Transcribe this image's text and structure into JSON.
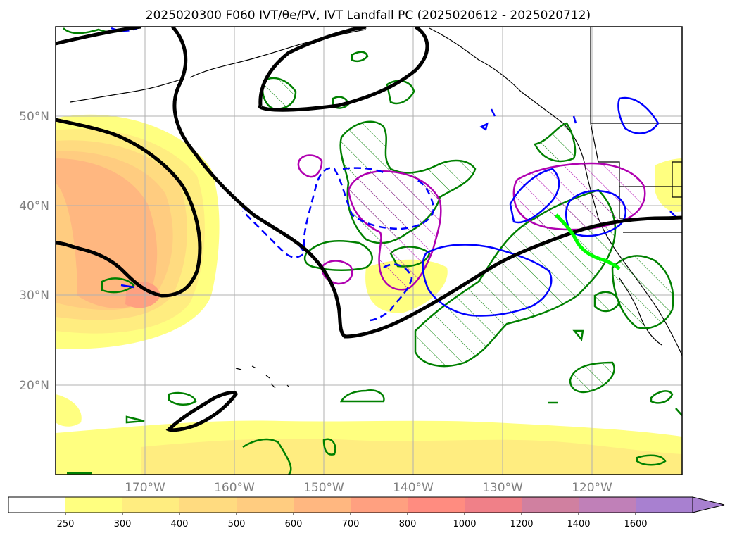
{
  "title": "2025020300 F060 IVT/θe/PV, IVT Landfall PC (2025020612 - 2025020712)",
  "map": {
    "projection": "plate-carree",
    "lon_range": [
      -180,
      -110
    ],
    "lat_range": [
      10,
      60
    ],
    "lat_labels": [
      {
        "value": 20,
        "label": "20°N"
      },
      {
        "value": 30,
        "label": "30°N"
      },
      {
        "value": 40,
        "label": "40°N"
      },
      {
        "value": 50,
        "label": "50°N"
      }
    ],
    "lon_labels": [
      {
        "value": -170,
        "label": "170°W"
      },
      {
        "value": -160,
        "label": "160°W"
      },
      {
        "value": -150,
        "label": "150°W"
      },
      {
        "value": -140,
        "label": "140°W"
      },
      {
        "value": -130,
        "label": "130°W"
      },
      {
        "value": -120,
        "label": "120°W"
      }
    ],
    "grid": true,
    "colors": {
      "theta_e_contour": "#000000",
      "pv_positive": "#0000ff",
      "landfall_pc_region": "#008000",
      "ivt_anomaly_region": "#b000b0",
      "landfall_track": "#00ff00",
      "coastline": "#000000"
    }
  },
  "colorbar": {
    "units_label": "",
    "extend": "max",
    "bins": [
      {
        "lower": 0,
        "upper": 250,
        "color": "#ffffff"
      },
      {
        "lower": 250,
        "upper": 300,
        "color": "#ffff80"
      },
      {
        "lower": 300,
        "upper": 400,
        "color": "#ffed80"
      },
      {
        "lower": 400,
        "upper": 500,
        "color": "#ffdb80"
      },
      {
        "lower": 500,
        "upper": 600,
        "color": "#ffcc80"
      },
      {
        "lower": 600,
        "upper": 700,
        "color": "#ffb780"
      },
      {
        "lower": 700,
        "upper": 800,
        "color": "#ffa080"
      },
      {
        "lower": 800,
        "upper": 1000,
        "color": "#ff8c80"
      },
      {
        "lower": 1000,
        "upper": 1200,
        "color": "#f08088"
      },
      {
        "lower": 1200,
        "upper": 1400,
        "color": "#d080a0"
      },
      {
        "lower": 1400,
        "upper": 1600,
        "color": "#c080b8"
      },
      {
        "lower": 1600,
        "upper": 2000,
        "color": "#a880d0"
      }
    ],
    "tick_labels": [
      "250",
      "300",
      "400",
      "500",
      "600",
      "700",
      "800",
      "1000",
      "1200",
      "1400",
      "1600"
    ]
  }
}
